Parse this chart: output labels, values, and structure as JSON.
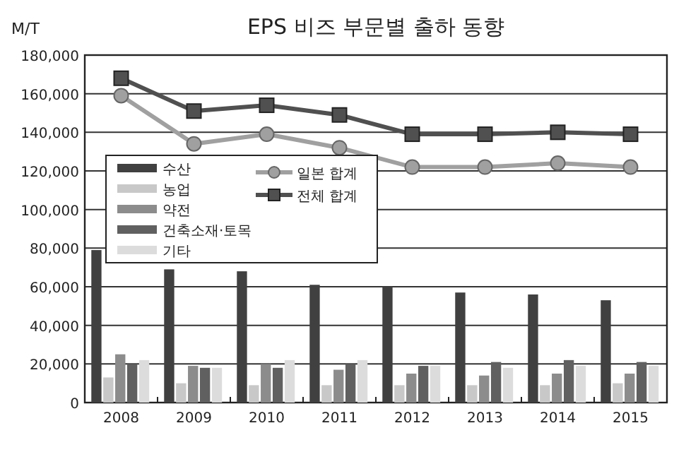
{
  "chart_data": {
    "type": "bar",
    "title": "EPS 비즈 부문별 출하 동향",
    "ylabel": "M/T",
    "categories": [
      "2008",
      "2009",
      "2010",
      "2011",
      "2012",
      "2013",
      "2014",
      "2015"
    ],
    "series": [
      {
        "name": "수산",
        "color": "#404040",
        "values": [
          79000,
          69000,
          68000,
          61000,
          60000,
          57000,
          56000,
          53000
        ]
      },
      {
        "name": "농업",
        "color": "#c8c8c8",
        "values": [
          13000,
          10000,
          9000,
          9000,
          9000,
          9000,
          9000,
          10000
        ]
      },
      {
        "name": "약전",
        "color": "#8c8c8c",
        "values": [
          25000,
          19000,
          20000,
          17000,
          15000,
          14000,
          15000,
          15000
        ]
      },
      {
        "name": "건축소재·토목",
        "color": "#606060",
        "values": [
          20000,
          18000,
          18000,
          20000,
          19000,
          21000,
          22000,
          21000
        ]
      },
      {
        "name": "기타",
        "color": "#dcdcdc",
        "values": [
          22000,
          18000,
          22000,
          22000,
          19000,
          18000,
          19000,
          19000
        ]
      },
      {
        "name": "일본 합계",
        "type": "line",
        "marker": "circle",
        "color": "#a0a0a0",
        "values": [
          159000,
          134000,
          139000,
          132000,
          122000,
          122000,
          124000,
          122000
        ]
      },
      {
        "name": "전체 합계",
        "type": "line",
        "marker": "square",
        "color": "#505050",
        "values": [
          168000,
          151000,
          154000,
          149000,
          139000,
          139000,
          140000,
          139000
        ]
      }
    ],
    "ylim": [
      0,
      180000
    ],
    "yticks": [
      {
        "value": 0,
        "label": "0"
      },
      {
        "value": 20000,
        "label": "20,000"
      },
      {
        "value": 40000,
        "label": "40,000"
      },
      {
        "value": 60000,
        "label": "60,000"
      },
      {
        "value": 80000,
        "label": "80,000"
      },
      {
        "value": 100000,
        "label": "100,000"
      },
      {
        "value": 120000,
        "label": "120,000"
      },
      {
        "value": 140000,
        "label": "140,000"
      },
      {
        "value": 160000,
        "label": "160,000"
      },
      {
        "value": 180000,
        "label": "180,000"
      }
    ],
    "grid": "y",
    "legend": "left"
  }
}
